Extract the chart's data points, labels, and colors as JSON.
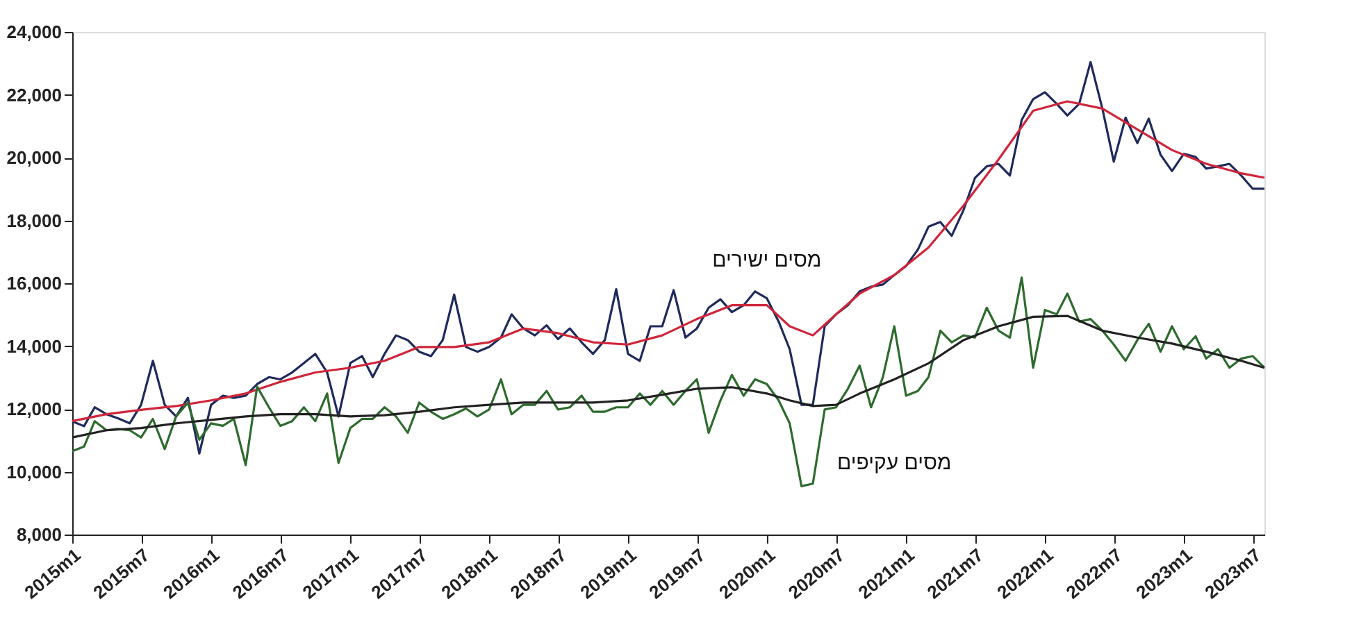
{
  "chart_data": {
    "type": "line",
    "xlim": [
      "2015-01",
      "2023-08"
    ],
    "ylim": [
      8000,
      24000
    ],
    "yticks": [
      {
        "value": 8000,
        "label": "8,000"
      },
      {
        "value": 10000,
        "label": "10,000"
      },
      {
        "value": 12000,
        "label": "12,000"
      },
      {
        "value": 14000,
        "label": "14,000"
      },
      {
        "value": 16000,
        "label": "16,000"
      },
      {
        "value": 18000,
        "label": "18,000"
      },
      {
        "value": 20000,
        "label": "20,000"
      },
      {
        "value": 22000,
        "label": "22,000"
      },
      {
        "value": 24000,
        "label": "24,000"
      }
    ],
    "xticks": [
      {
        "value": "2015-01",
        "label": "2015m1"
      },
      {
        "value": "2015-07",
        "label": "2015m7"
      },
      {
        "value": "2016-01",
        "label": "2016m1"
      },
      {
        "value": "2016-07",
        "label": "2016m7"
      },
      {
        "value": "2017-01",
        "label": "2017m1"
      },
      {
        "value": "2017-07",
        "label": "2017m7"
      },
      {
        "value": "2018-01",
        "label": "2018m1"
      },
      {
        "value": "2018-07",
        "label": "2018m7"
      },
      {
        "value": "2019-01",
        "label": "2019m1"
      },
      {
        "value": "2019-07",
        "label": "2019m7"
      },
      {
        "value": "2020-01",
        "label": "2020m1"
      },
      {
        "value": "2020-07",
        "label": "2020m7"
      },
      {
        "value": "2021-01",
        "label": "2021m1"
      },
      {
        "value": "2021-07",
        "label": "2021m7"
      },
      {
        "value": "2022-01",
        "label": "2022m1"
      },
      {
        "value": "2022-07",
        "label": "2022m7"
      },
      {
        "value": "2023-01",
        "label": "2023m1"
      },
      {
        "value": "2023-07",
        "label": "2023m7"
      }
    ],
    "marker": "none",
    "line_style": "solid",
    "grid": false,
    "series": [
      {
        "name": "מסים ישירים",
        "color": "#1f2a5c",
        "x": [
          "2015-01",
          "2015-02",
          "2015-03",
          "2015-04",
          "2015-05",
          "2015-06",
          "2015-07",
          "2015-08",
          "2015-09",
          "2015-10",
          "2015-11",
          "2015-12",
          "2016-01",
          "2016-02",
          "2016-03",
          "2016-04",
          "2016-05",
          "2016-06",
          "2016-07",
          "2016-08",
          "2016-09",
          "2016-10",
          "2016-11",
          "2016-12",
          "2017-01",
          "2017-02",
          "2017-03",
          "2017-04",
          "2017-05",
          "2017-06",
          "2017-07",
          "2017-08",
          "2017-09",
          "2017-10",
          "2017-11",
          "2017-12",
          "2018-01",
          "2018-02",
          "2018-03",
          "2018-04",
          "2018-05",
          "2018-06",
          "2018-07",
          "2018-08",
          "2018-09",
          "2018-10",
          "2018-11",
          "2018-12",
          "2019-01",
          "2019-02",
          "2019-03",
          "2019-04",
          "2019-05",
          "2019-06",
          "2019-07",
          "2019-08",
          "2019-09",
          "2019-10",
          "2019-11",
          "2019-12",
          "2020-01",
          "2020-02",
          "2020-03",
          "2020-04",
          "2020-05",
          "2020-06",
          "2020-07",
          "2020-08",
          "2020-09",
          "2020-10",
          "2020-11",
          "2020-12",
          "2021-01",
          "2021-02",
          "2021-03",
          "2021-04",
          "2021-05",
          "2021-06",
          "2021-07",
          "2021-08",
          "2021-09",
          "2021-10",
          "2021-11",
          "2021-12",
          "2022-01",
          "2022-02",
          "2022-03",
          "2022-04",
          "2022-05",
          "2022-06",
          "2022-07",
          "2022-08",
          "2022-09",
          "2022-10",
          "2022-11",
          "2022-12",
          "2023-01",
          "2023-02",
          "2023-03",
          "2023-04",
          "2023-05",
          "2023-06",
          "2023-07",
          "2023-08"
        ],
        "values": [
          11600,
          11450,
          12050,
          11830,
          11700,
          11540,
          12130,
          13530,
          12130,
          11760,
          12350,
          10580,
          12130,
          12420,
          12350,
          12420,
          12790,
          13010,
          12940,
          13160,
          13460,
          13750,
          13160,
          11760,
          13460,
          13680,
          13010,
          13750,
          14340,
          14190,
          13820,
          13680,
          14190,
          15640,
          13970,
          13820,
          13970,
          14270,
          15010,
          14560,
          14340,
          14660,
          14220,
          14560,
          14120,
          13750,
          14190,
          15810,
          13750,
          13530,
          14630,
          14630,
          15780,
          14270,
          14560,
          15220,
          15490,
          15080,
          15300,
          15740,
          15520,
          14780,
          13900,
          12130,
          12130,
          14630,
          15010,
          15300,
          15740,
          15890,
          15960,
          16260,
          16550,
          17070,
          17800,
          17950,
          17510,
          18330,
          19350,
          19720,
          19800,
          19430,
          21200,
          21860,
          22080,
          21710,
          21340,
          21710,
          23040,
          21560,
          19870,
          21270,
          20460,
          21240,
          20090,
          19570,
          20120,
          20020,
          19650,
          19720,
          19800,
          19430,
          19010,
          19010
        ]
      },
      {
        "color": "#d0253a",
        "x": [
          "2015-01",
          "2015-04",
          "2015-07",
          "2015-10",
          "2016-01",
          "2016-04",
          "2016-07",
          "2016-10",
          "2017-01",
          "2017-04",
          "2017-07",
          "2017-10",
          "2018-01",
          "2018-04",
          "2018-07",
          "2018-10",
          "2019-01",
          "2019-04",
          "2019-07",
          "2019-10",
          "2020-01",
          "2020-03",
          "2020-05",
          "2020-07",
          "2020-09",
          "2020-12",
          "2021-03",
          "2021-06",
          "2021-09",
          "2021-12",
          "2022-03",
          "2022-06",
          "2022-09",
          "2022-12",
          "2023-03",
          "2023-06",
          "2023-08"
        ],
        "values": [
          11610,
          11830,
          11970,
          12090,
          12270,
          12490,
          12860,
          13160,
          13310,
          13530,
          13970,
          13970,
          14120,
          14560,
          14410,
          14120,
          14050,
          14340,
          14860,
          15300,
          15300,
          14630,
          14340,
          15010,
          15670,
          16260,
          17140,
          18470,
          19940,
          21490,
          21790,
          21560,
          20900,
          20240,
          19800,
          19500,
          19360
        ]
      },
      {
        "name": "מסים עקיפים",
        "color": "#2e6b2e",
        "x": [
          "2015-01",
          "2015-02",
          "2015-03",
          "2015-04",
          "2015-05",
          "2015-06",
          "2015-07",
          "2015-08",
          "2015-09",
          "2015-10",
          "2015-11",
          "2015-12",
          "2016-01",
          "2016-02",
          "2016-03",
          "2016-04",
          "2016-05",
          "2016-06",
          "2016-07",
          "2016-08",
          "2016-09",
          "2016-10",
          "2016-11",
          "2016-12",
          "2017-01",
          "2017-02",
          "2017-03",
          "2017-04",
          "2017-05",
          "2017-06",
          "2017-07",
          "2017-08",
          "2017-09",
          "2017-10",
          "2017-11",
          "2017-12",
          "2018-01",
          "2018-02",
          "2018-03",
          "2018-04",
          "2018-05",
          "2018-06",
          "2018-07",
          "2018-08",
          "2018-09",
          "2018-10",
          "2018-11",
          "2018-12",
          "2019-01",
          "2019-02",
          "2019-03",
          "2019-04",
          "2019-05",
          "2019-06",
          "2019-07",
          "2019-08",
          "2019-09",
          "2019-10",
          "2019-11",
          "2019-12",
          "2020-01",
          "2020-02",
          "2020-03",
          "2020-04",
          "2020-05",
          "2020-06",
          "2020-07",
          "2020-08",
          "2020-09",
          "2020-10",
          "2020-11",
          "2020-12",
          "2021-01",
          "2021-02",
          "2021-03",
          "2021-04",
          "2021-05",
          "2021-06",
          "2021-07",
          "2021-08",
          "2021-09",
          "2021-10",
          "2021-11",
          "2021-12",
          "2022-01",
          "2022-02",
          "2022-03",
          "2022-04",
          "2022-05",
          "2022-06",
          "2022-07",
          "2022-08",
          "2022-09",
          "2022-10",
          "2022-11",
          "2022-12",
          "2023-01",
          "2023-02",
          "2023-03",
          "2023-04",
          "2023-05",
          "2023-06",
          "2023-07",
          "2023-08"
        ],
        "values": [
          10650,
          10800,
          11610,
          11320,
          11360,
          11320,
          11090,
          11680,
          10720,
          11760,
          12200,
          11020,
          11540,
          11460,
          11680,
          10210,
          12710,
          12050,
          11460,
          11610,
          12050,
          11610,
          12490,
          10280,
          11390,
          11680,
          11680,
          12050,
          11760,
          11240,
          12200,
          11910,
          11680,
          11830,
          12010,
          11760,
          11980,
          12940,
          11830,
          12130,
          12130,
          12570,
          11980,
          12050,
          12420,
          11910,
          11910,
          12050,
          12050,
          12490,
          12130,
          12570,
          12130,
          12570,
          12940,
          11240,
          12270,
          13080,
          12420,
          12940,
          12790,
          12270,
          11540,
          9540,
          9620,
          11980,
          12050,
          12640,
          13380,
          12050,
          13010,
          14630,
          12420,
          12570,
          13010,
          14490,
          14120,
          14340,
          14270,
          15220,
          14490,
          14270,
          16180,
          13310,
          15150,
          15010,
          15670,
          14780,
          14860,
          14490,
          14050,
          13530,
          14190,
          14710,
          13820,
          14630,
          13900,
          14310,
          13600,
          13900,
          13310,
          13600,
          13680,
          13310
        ]
      },
      {
        "color": "#222222",
        "x": [
          "2015-01",
          "2015-04",
          "2015-07",
          "2015-10",
          "2016-01",
          "2016-04",
          "2016-07",
          "2016-10",
          "2017-01",
          "2017-04",
          "2017-07",
          "2017-10",
          "2018-01",
          "2018-04",
          "2018-07",
          "2018-10",
          "2019-01",
          "2019-04",
          "2019-07",
          "2019-10",
          "2020-01",
          "2020-03",
          "2020-05",
          "2020-07",
          "2020-09",
          "2020-12",
          "2021-03",
          "2021-06",
          "2021-09",
          "2021-12",
          "2022-03",
          "2022-06",
          "2022-09",
          "2022-12",
          "2023-03",
          "2023-06",
          "2023-08"
        ],
        "values": [
          11090,
          11320,
          11390,
          11540,
          11650,
          11760,
          11830,
          11830,
          11760,
          11800,
          11910,
          12050,
          12130,
          12200,
          12200,
          12200,
          12270,
          12450,
          12640,
          12690,
          12490,
          12270,
          12090,
          12130,
          12490,
          12940,
          13450,
          14190,
          14630,
          14930,
          14960,
          14490,
          14270,
          14080,
          13820,
          13530,
          13310
        ]
      }
    ]
  }
}
